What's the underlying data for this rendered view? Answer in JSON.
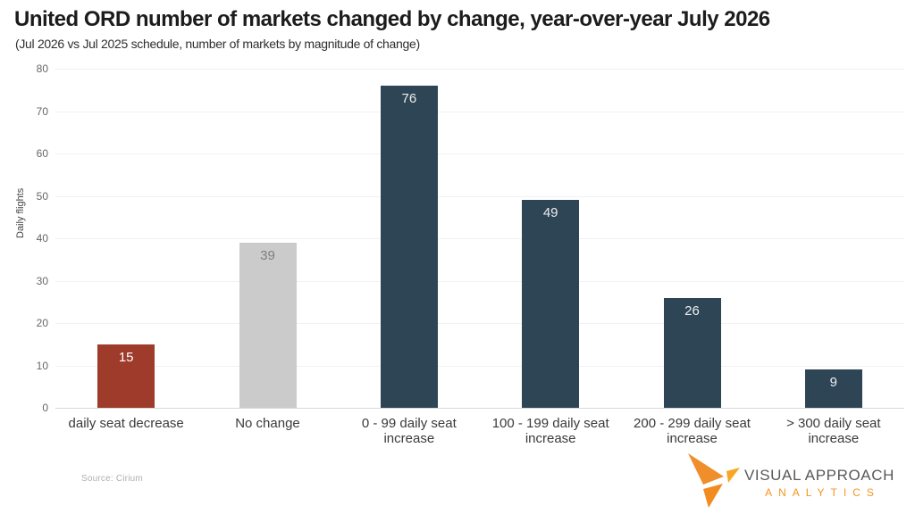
{
  "chart_data": {
    "type": "bar",
    "title": "United ORD number of markets changed by change, year-over-year July 2026",
    "subtitle": "(Jul 2026 vs Jul 2025 schedule, number of markets by magnitude of change)",
    "categories": [
      "daily seat decrease",
      "No change",
      "0 - 99 daily seat increase",
      "100 - 199 daily seat increase",
      "200 - 299 daily seat increase",
      "> 300 daily seat increase"
    ],
    "values": [
      15,
      39,
      76,
      49,
      26,
      9
    ],
    "bar_colors": [
      "#9e3b2a",
      "#cbcbcb",
      "#2e4556",
      "#2e4556",
      "#2e4556",
      "#2e4556"
    ],
    "value_label_colors": [
      "#ffffff",
      "#7e7e7e",
      "#eeeeee",
      "#eeeeee",
      "#eeeeee",
      "#eeeeee"
    ],
    "xlabel": "",
    "ylabel": "Daily flights",
    "ylim": [
      0,
      80
    ],
    "yticks": [
      0,
      10,
      20,
      30,
      40,
      50,
      60,
      70,
      80
    ],
    "grid": true,
    "legend": "none"
  },
  "footer": {
    "source": "Source: Cirium",
    "logo": {
      "name": "VISUAL APPROACH",
      "subname": "ANALYTICS",
      "text_color": "#58595b",
      "accent_color": "#f7941e"
    }
  }
}
